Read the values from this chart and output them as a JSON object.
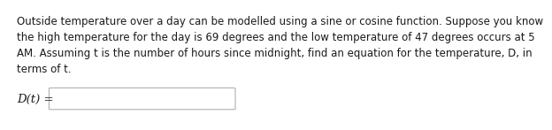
{
  "background_color": "#ffffff",
  "lines": [
    "Outside temperature over a day can be modelled using a sine or cosine function. Suppose you know",
    "the high temperature for the day is 69 degrees and the low temperature of 47 degrees occurs at 5",
    "AM. Assuming t is the number of hours since midnight, find an equation for the temperature, D, in",
    "terms of t."
  ],
  "label_text": "D(t) =",
  "text_color": "#1a1a1a",
  "box_edge_color": "#b0b0b0",
  "box_face_color": "#ffffff",
  "font_size": 8.5,
  "label_font_size": 9.5
}
